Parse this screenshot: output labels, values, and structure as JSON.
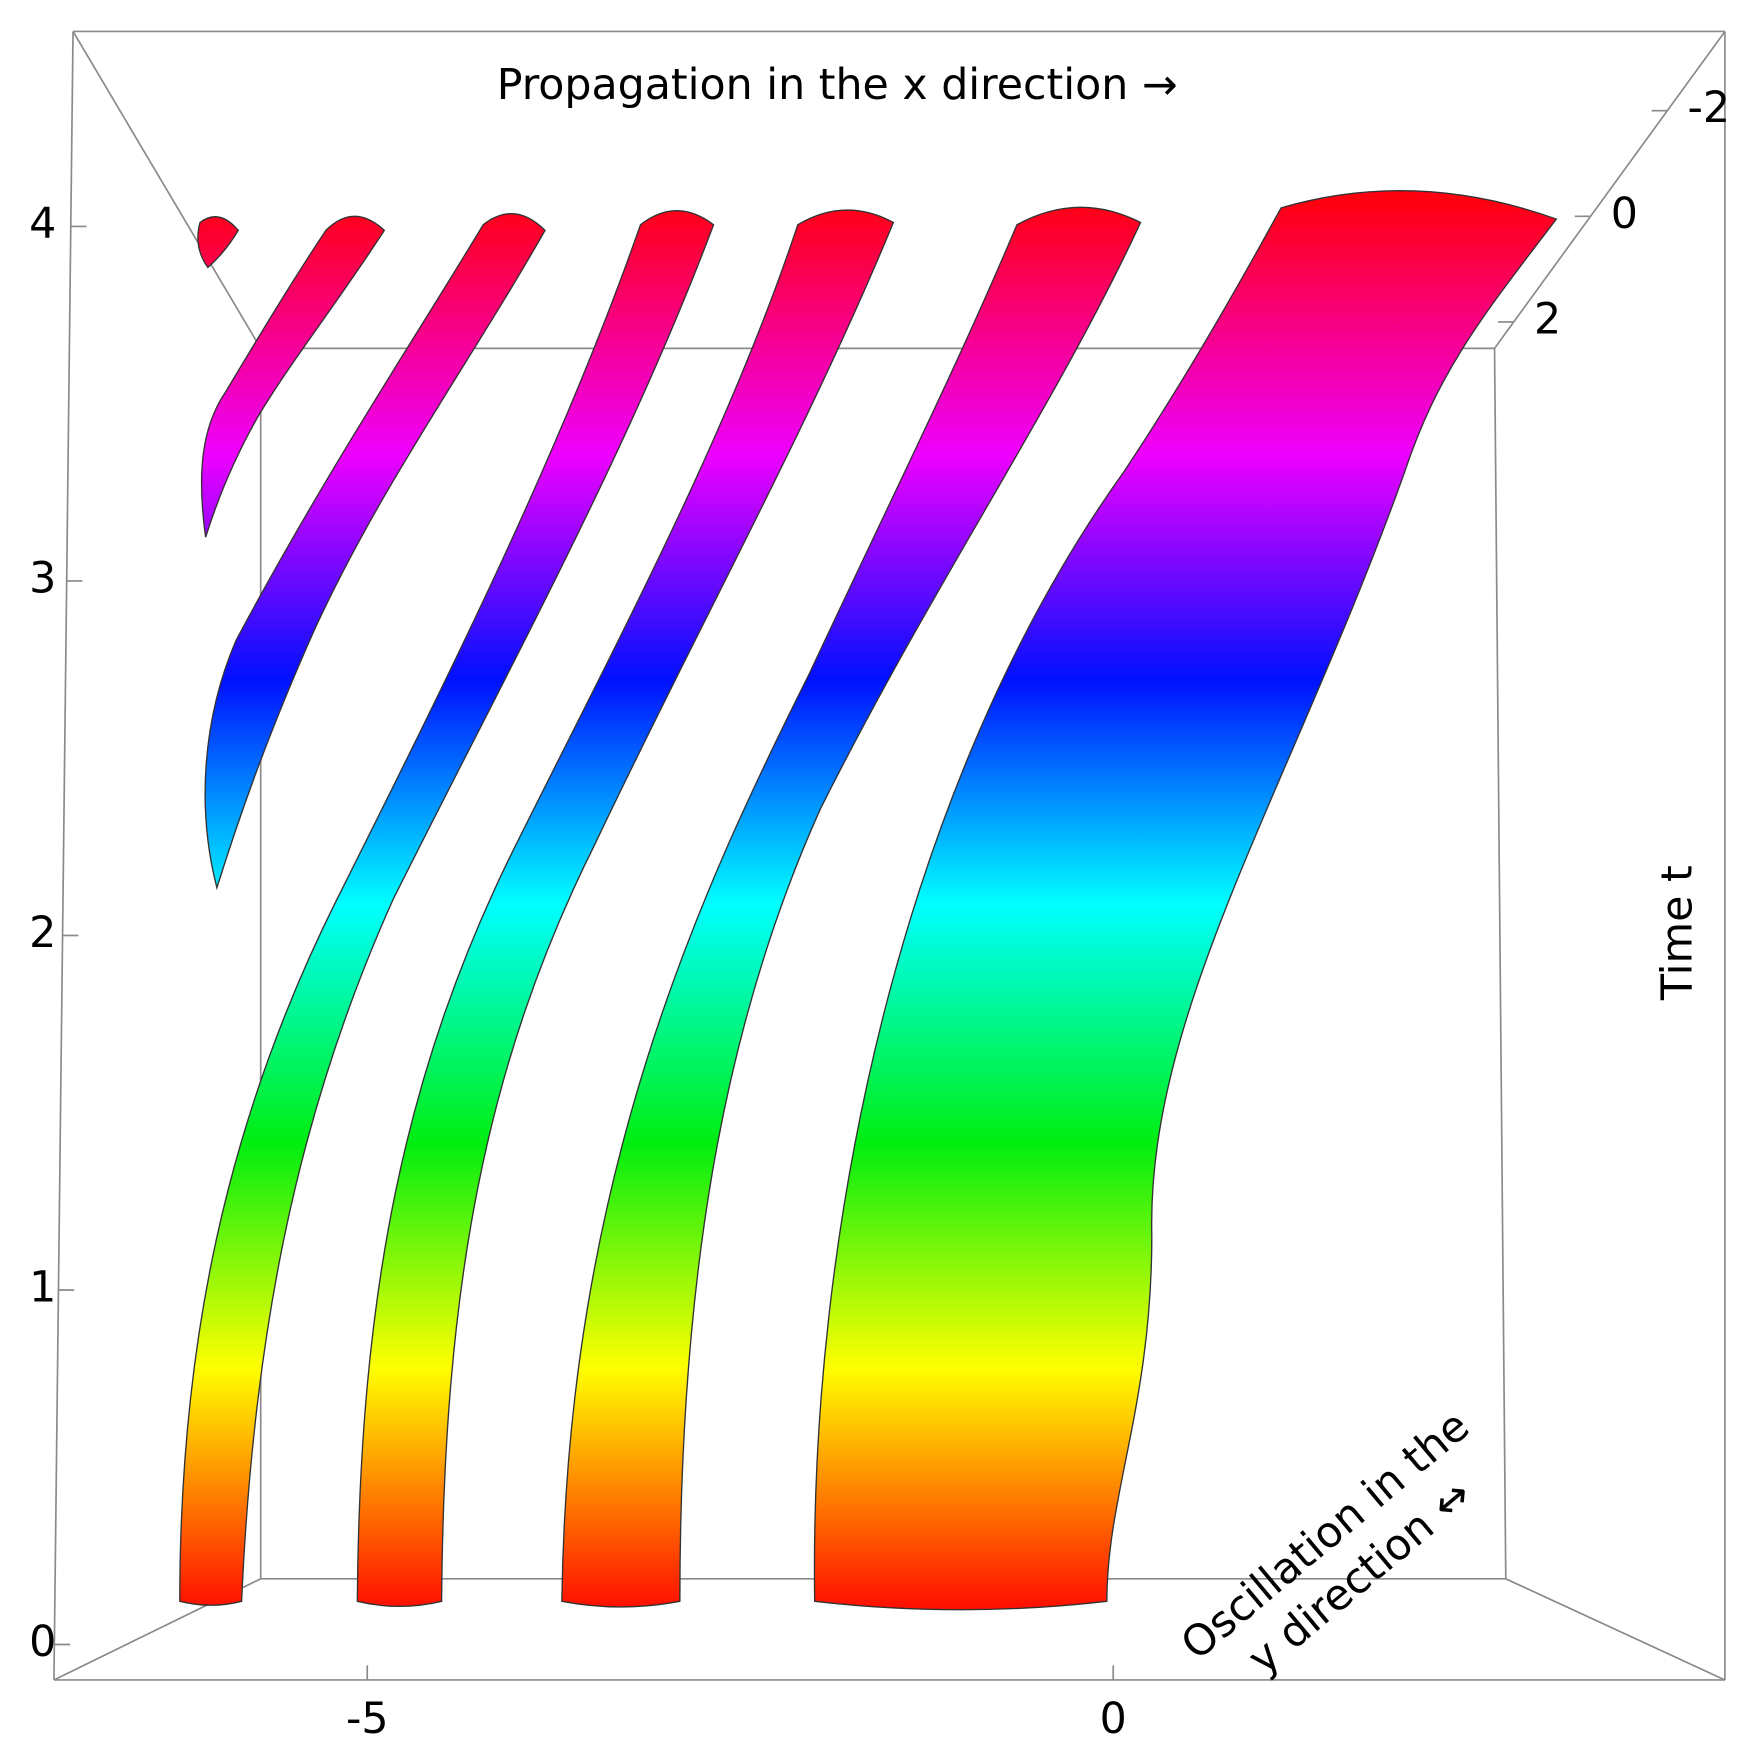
{
  "chart_data": {
    "type": "surface3d",
    "title": "Propagation in the x direction →",
    "zlabel": "Time t",
    "ylabel": [
      "Oscillation in the",
      "y direction ↔"
    ],
    "xlim": [
      -7.1,
      4.1
    ],
    "xticks": [
      -5,
      0
    ],
    "ylim": [
      -3.5,
      2.5
    ],
    "yticks": [
      -2,
      0,
      2
    ],
    "zlim": [
      -0.1,
      4.55
    ],
    "zticks": [
      0,
      1,
      2,
      3,
      4
    ]
  }
}
